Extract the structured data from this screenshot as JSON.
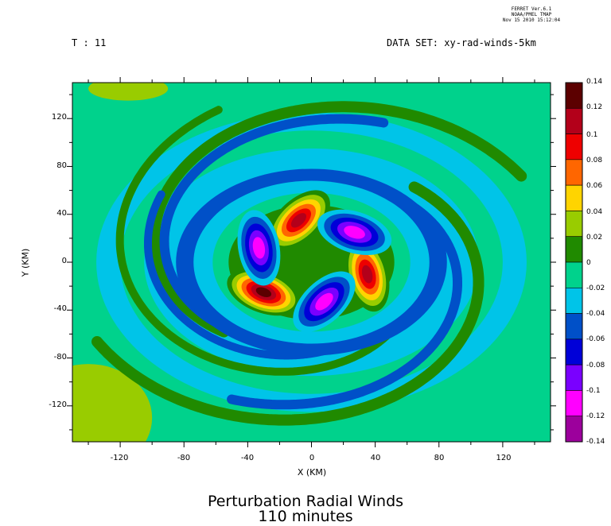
{
  "header": {
    "stamp_lines": [
      "FERRET Ver.6.1",
      "NOAA/PMEL TMAP",
      "Nov 15 2010 15:12:04"
    ],
    "t_label": "T : 11",
    "dataset_label": "DATA SET: xy-rad-winds-5km"
  },
  "chart_data": {
    "type": "heatmap",
    "title": "Perturbation Radial Winds",
    "subtitle": "110 minutes",
    "xlabel": "X (KM)",
    "ylabel": "Y (KM)",
    "xlim": [
      -150,
      150
    ],
    "ylim": [
      -150,
      150
    ],
    "x_ticks": [
      -120,
      -80,
      -40,
      0,
      40,
      80,
      120
    ],
    "y_ticks": [
      120,
      80,
      40,
      0,
      -40,
      -80,
      -120
    ],
    "colorbar": {
      "levels": [
        0.14,
        0.12,
        0.1,
        0.08,
        0.06,
        0.04,
        0.02,
        0,
        -0.02,
        -0.04,
        -0.06,
        -0.08,
        -0.1,
        -0.12,
        -0.14
      ],
      "level_labels": [
        "0.14",
        "0.12",
        "0.1",
        "0.08",
        "0.06",
        "0.04",
        "0.02",
        "0",
        "-0.02",
        "-0.04",
        "-0.06",
        "-0.08",
        "-0.1",
        "-0.12",
        "-0.14"
      ],
      "colors": [
        "#5c0000",
        "#b3001a",
        "#ee0000",
        "#ff6600",
        "#ffd400",
        "#99cc00",
        "#208a00",
        "#00d28c",
        "#00c4e8",
        "#0050c8",
        "#0000d8",
        "#7a00ff",
        "#ff00ff",
        "#9c009c",
        "#4a004a"
      ]
    },
    "background_color": "#00d28c",
    "features": [
      {
        "label": "positive lobe",
        "x": -8,
        "y": 35,
        "peak": 0.12
      },
      {
        "label": "positive lobe",
        "x": 35,
        "y": -10,
        "peak": 0.12
      },
      {
        "label": "positive lobe",
        "x": -30,
        "y": -25,
        "peak": 0.14
      },
      {
        "label": "negative lobe",
        "x": 27,
        "y": 25,
        "peak": -0.1
      },
      {
        "label": "negative lobe",
        "x": -33,
        "y": 12,
        "peak": -0.1
      },
      {
        "label": "negative lobe",
        "x": 8,
        "y": -33,
        "peak": -0.1
      }
    ]
  }
}
